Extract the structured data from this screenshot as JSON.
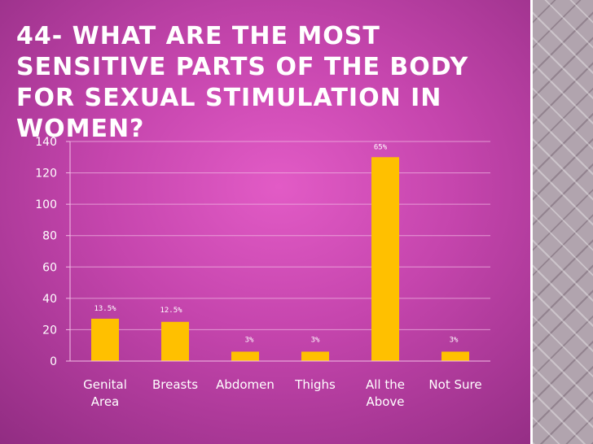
{
  "slide": {
    "title": "44- What are the most sensitive parts of the body for sexual stimulation in women?"
  },
  "colors": {
    "background": "#c545ad",
    "bar": "#ffc000",
    "text": "#ffffff"
  },
  "chart_data": {
    "type": "bar",
    "title": "",
    "xlabel": "",
    "ylabel": "",
    "categories": [
      [
        "Genital",
        "Area"
      ],
      [
        "Breasts"
      ],
      [
        "Abdomen"
      ],
      [
        "Thighs"
      ],
      [
        "All the",
        "Above"
      ],
      [
        "Not Sure"
      ]
    ],
    "values": [
      27,
      25,
      6,
      6,
      130,
      6
    ],
    "data_labels": [
      "13.5%",
      "12.5%",
      "3%",
      "3%",
      "65%",
      "3%"
    ],
    "ylim": [
      0,
      140
    ],
    "yticks": [
      0,
      20,
      40,
      60,
      80,
      100,
      120,
      140
    ],
    "grid": true,
    "legend": "none"
  }
}
